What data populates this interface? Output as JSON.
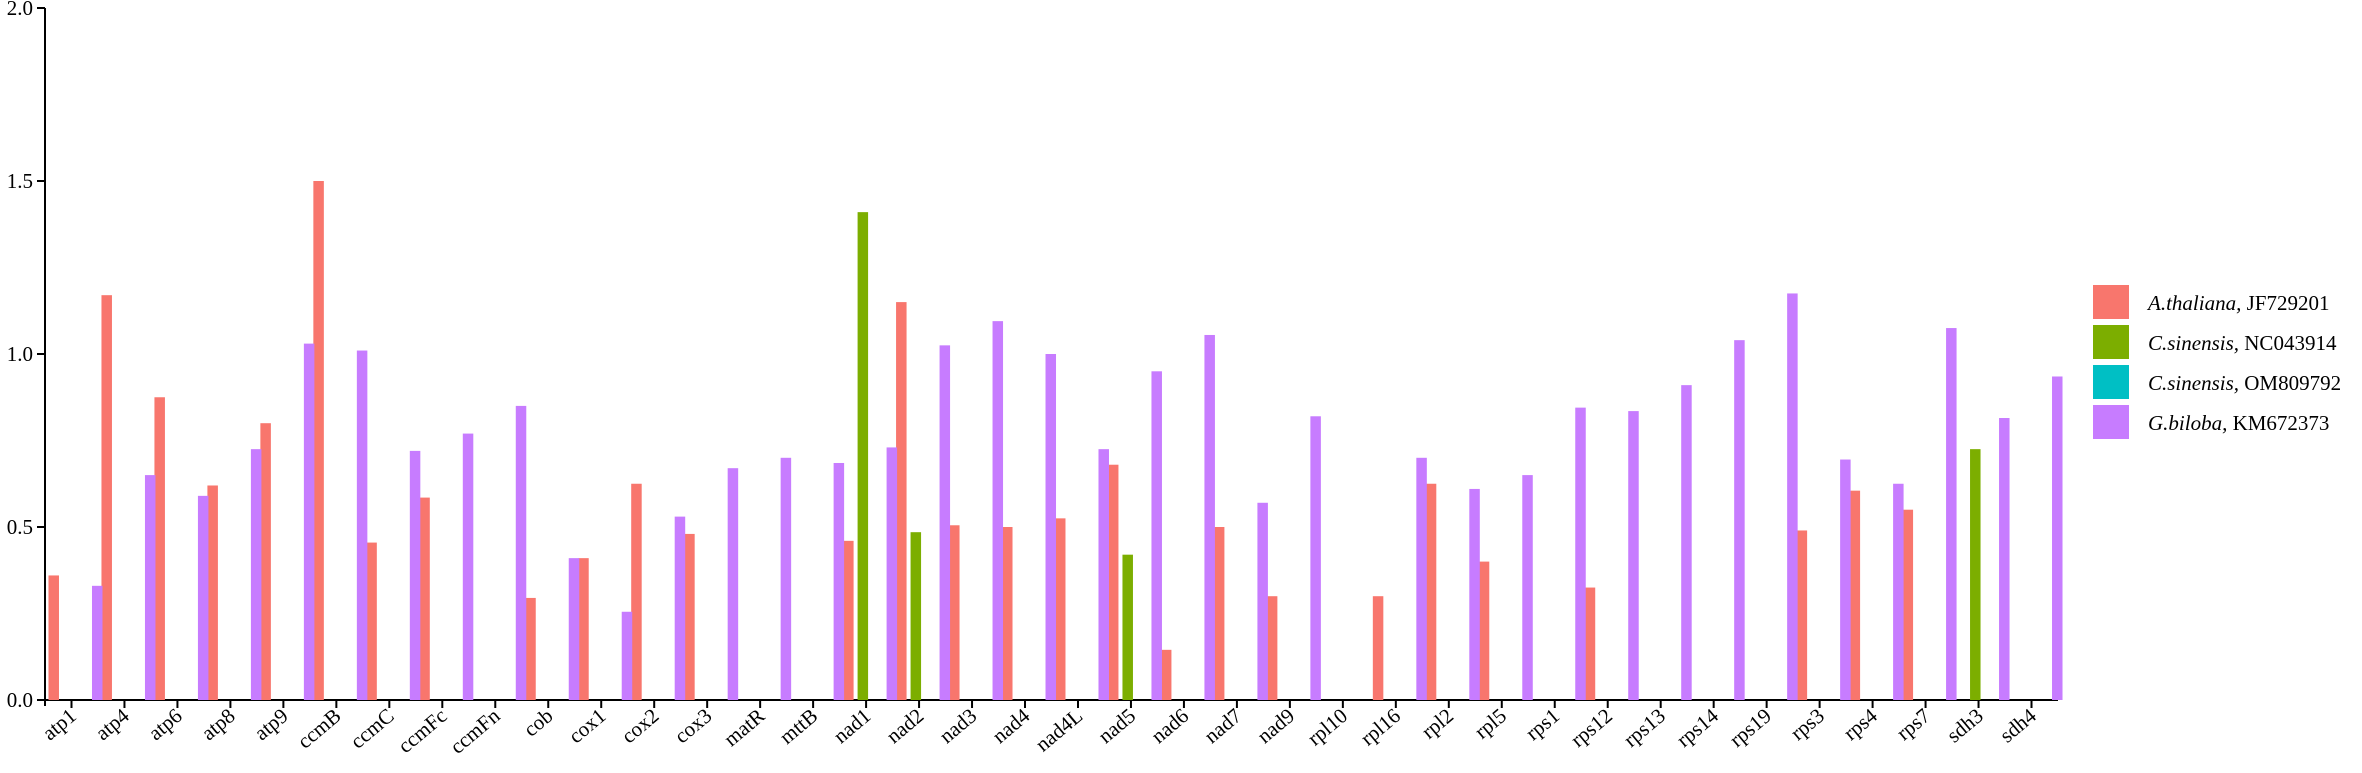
{
  "chart_data": {
    "type": "bar",
    "title": "",
    "xlabel": "",
    "ylabel": "",
    "ylim": [
      0,
      2.0
    ],
    "yticks": [
      "0.0",
      "0.5",
      "1.0",
      "1.5",
      "2.0"
    ],
    "grid": false,
    "legend_position": "right",
    "categories": [
      "atp1",
      "atp4",
      "atp6",
      "atp8",
      "atp9",
      "ccmB",
      "ccmC",
      "ccmFc",
      "ccmFn",
      "cob",
      "cox1",
      "cox2",
      "cox3",
      "matR",
      "mttB",
      "nad1",
      "nad2",
      "nad3",
      "nad4",
      "nad4L",
      "nad5",
      "nad6",
      "nad7",
      "nad9",
      "rpl10",
      "rpl16",
      "rpl2",
      "rpl5",
      "rps1",
      "rps12",
      "rps13",
      "rps14",
      "rps19",
      "rps3",
      "rps4",
      "rps7",
      "sdh3",
      "sdh4"
    ],
    "series": [
      {
        "name": "A.thaliana, JF729201",
        "species": "A.thaliana,",
        "accession": "JF729201",
        "color": "#f8766d",
        "values": [
          0.36,
          1.17,
          0.875,
          0.62,
          0.8,
          1.5,
          0.455,
          0.585,
          null,
          0.295,
          0.41,
          0.625,
          0.48,
          null,
          null,
          0.46,
          1.15,
          0.505,
          0.5,
          0.525,
          0.68,
          0.145,
          0.5,
          0.3,
          null,
          0.3,
          0.625,
          0.4,
          null,
          0.325,
          null,
          null,
          null,
          0.49,
          0.605,
          0.55,
          null,
          null
        ]
      },
      {
        "name": "C.sinensis, NC043914",
        "species": "C.sinensis,",
        "accession": "NC043914",
        "color": "#7cae00",
        "values": [
          null,
          null,
          null,
          null,
          null,
          null,
          null,
          null,
          null,
          null,
          null,
          null,
          null,
          null,
          null,
          1.41,
          0.485,
          null,
          null,
          null,
          0.42,
          null,
          null,
          null,
          null,
          null,
          null,
          null,
          null,
          null,
          null,
          null,
          null,
          null,
          null,
          null,
          0.725,
          null
        ]
      },
      {
        "name": "C.sinensis, OM809792",
        "species": "C.sinensis,",
        "accession": "OM809792",
        "color": "#00bfc4",
        "values": [
          null,
          null,
          null,
          null,
          null,
          null,
          null,
          null,
          null,
          null,
          null,
          null,
          null,
          null,
          null,
          null,
          null,
          null,
          null,
          null,
          null,
          null,
          null,
          null,
          null,
          null,
          null,
          null,
          null,
          null,
          null,
          null,
          null,
          null,
          null,
          null,
          null,
          null
        ]
      },
      {
        "name": "G.biloba, KM672373",
        "species": "G.biloba,",
        "accession": "KM672373",
        "color": "#c77cff",
        "values": [
          0.33,
          0.65,
          0.59,
          0.725,
          1.03,
          1.01,
          0.72,
          0.77,
          0.85,
          0.41,
          0.255,
          0.53,
          0.67,
          0.7,
          0.685,
          0.73,
          1.025,
          1.095,
          1.0,
          0.725,
          0.95,
          1.055,
          0.57,
          0.82,
          null,
          0.7,
          0.61,
          0.65,
          0.845,
          0.835,
          0.91,
          1.04,
          1.175,
          0.695,
          0.625,
          1.075,
          0.815,
          0.935
        ]
      }
    ]
  }
}
